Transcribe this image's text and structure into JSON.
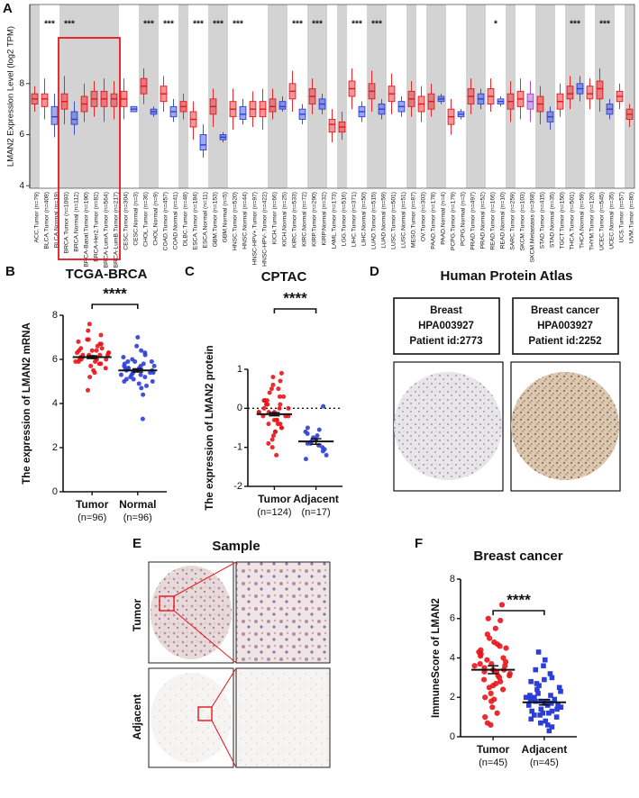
{
  "chart_data": [
    {
      "type": "box",
      "panel_label": "A",
      "y_label": "LMAN2 Expression Level (log2 TPM)",
      "ylim": [
        3.9,
        11.1
      ],
      "yticks": [
        4,
        6,
        8
      ],
      "colors": {
        "Tumor": "#e8141a",
        "Normal": "#2b3fd6",
        "Metastasis": "#9b3fd1"
      },
      "categories": [
        "ACC.Tumor (n=79)",
        "BLCA.Tumor (n=408)",
        "BLCA.Normal (n=19)",
        "BRCA.Tumor (n=1093)",
        "BRCA.Normal (n=112)",
        "BRCA-Basal.Tumor (n=190)",
        "BRCA-Her2.Tumor (n=82)",
        "BRCA-LumA.Tumor (n=564)",
        "BRCA-LumB.Tumor (n=217)",
        "CESC.Tumor (n=304)",
        "CESC.Normal (n=3)",
        "CHOL.Tumor (n=36)",
        "CHOL.Normal (n=9)",
        "COAD.Tumor (n=457)",
        "COAD.Normal (n=41)",
        "DLBC.Tumor (n=48)",
        "ESCA.Tumor (n=184)",
        "ESCA.Normal (n=11)",
        "GBM.Tumor (n=153)",
        "GBM.Normal (n=5)",
        "HNSC.Tumor (n=520)",
        "HNSC.Normal (n=44)",
        "HNSC-HPV+.Tumor (n=97)",
        "HNSC-HPV-.Tumor (n=422)",
        "KICH.Tumor (n=66)",
        "KICH.Normal (n=25)",
        "KIRC.Tumor (n=533)",
        "KIRC.Normal (n=72)",
        "KIRP.Tumor (n=290)",
        "KIRP.Normal (n=32)",
        "LAML.Tumor (n=173)",
        "LGG.Tumor (n=516)",
        "LIHC.Tumor (n=371)",
        "LIHC.Normal (n=50)",
        "LUAD.Tumor (n=515)",
        "LUAD.Normal (n=59)",
        "LUSC.Tumor (n=501)",
        "LUSC.Normal (n=51)",
        "MESO.Tumor (n=87)",
        "OV.Tumor (n=303)",
        "PAAD.Tumor (n=178)",
        "PAAD.Normal (n=4)",
        "PCPG.Tumor (n=179)",
        "PCPG.Normal (n=3)",
        "PRAD.Tumor (n=497)",
        "PRAD.Normal (n=52)",
        "READ.Tumor (n=166)",
        "READ.Normal (n=10)",
        "SARC.Tumor (n=259)",
        "SKCM.Tumor (n=103)",
        "SKCM.Metastasis (n=368)",
        "STAD.Tumor (n=415)",
        "STAD.Normal (n=35)",
        "TGCT.Tumor (n=150)",
        "THCA.Tumor (n=501)",
        "THCA.Normal (n=59)",
        "THYM.Tumor (n=120)",
        "UCEC.Tumor (n=545)",
        "UCEC.Normal (n=35)",
        "UCS.Tumor (n=57)",
        "UVM.Tumor (n=80)"
      ],
      "median": [
        7.4,
        7.4,
        6.7,
        7.3,
        6.6,
        7.2,
        7.4,
        7.4,
        7.4,
        7.4,
        7.0,
        7.9,
        6.9,
        7.6,
        6.9,
        7.1,
        6.6,
        5.6,
        7.1,
        5.9,
        7.0,
        6.8,
        7.0,
        7.0,
        7.1,
        7.1,
        7.7,
        6.8,
        7.5,
        7.2,
        6.4,
        6.3,
        7.8,
        6.9,
        7.7,
        7.0,
        7.6,
        7.1,
        7.4,
        7.2,
        7.3,
        7.4,
        6.7,
        6.8,
        7.5,
        7.4,
        7.5,
        7.3,
        7.3,
        7.4,
        7.3,
        7.2,
        6.7,
        7.3,
        7.6,
        7.8,
        7.6,
        7.8,
        7.0,
        7.5,
        6.8
      ],
      "q1": [
        7.2,
        7.1,
        6.4,
        7.0,
        6.4,
        6.9,
        7.1,
        7.1,
        7.1,
        7.1,
        6.9,
        7.6,
        6.8,
        7.3,
        6.7,
        6.9,
        6.3,
        5.4,
        6.8,
        5.8,
        6.7,
        6.6,
        6.7,
        6.7,
        6.9,
        7.0,
        7.4,
        6.6,
        7.2,
        7.0,
        6.1,
        6.1,
        7.5,
        6.7,
        7.4,
        6.8,
        7.3,
        6.9,
        7.1,
        6.9,
        7.0,
        7.3,
        6.4,
        6.7,
        7.2,
        7.2,
        7.2,
        7.2,
        7.0,
        7.1,
        7.0,
        6.9,
        6.5,
        7.0,
        7.4,
        7.6,
        7.4,
        7.4,
        6.8,
        7.3,
        6.6
      ],
      "q3": [
        7.6,
        7.6,
        7.1,
        7.6,
        6.9,
        7.5,
        7.7,
        7.7,
        7.6,
        7.7,
        7.1,
        8.2,
        7.0,
        7.9,
        7.1,
        7.3,
        6.9,
        6.0,
        7.4,
        6.0,
        7.3,
        7.1,
        7.3,
        7.3,
        7.4,
        7.3,
        8.0,
        7.0,
        7.8,
        7.4,
        6.6,
        6.5,
        8.1,
        7.1,
        8.0,
        7.2,
        7.9,
        7.3,
        7.7,
        7.5,
        7.6,
        7.5,
        7.0,
        6.9,
        7.8,
        7.6,
        7.8,
        7.4,
        7.6,
        7.7,
        7.6,
        7.5,
        6.9,
        7.6,
        7.9,
        8.0,
        7.9,
        8.1,
        7.2,
        7.7,
        7.0
      ],
      "whisker_low": [
        6.9,
        6.6,
        5.9,
        6.4,
        6.0,
        6.5,
        6.7,
        6.5,
        6.6,
        6.6,
        6.9,
        7.2,
        6.7,
        6.9,
        6.5,
        6.6,
        5.8,
        5.1,
        6.3,
        5.7,
        6.2,
        6.4,
        6.3,
        6.2,
        6.6,
        6.9,
        6.9,
        6.4,
        6.8,
        6.8,
        5.7,
        5.8,
        7.0,
        6.5,
        6.9,
        6.6,
        6.8,
        6.7,
        6.7,
        6.5,
        6.7,
        7.2,
        6.0,
        6.6,
        6.8,
        7.0,
        6.9,
        7.1,
        6.5,
        6.6,
        6.5,
        6.4,
        6.2,
        6.7,
        7.0,
        7.3,
        7.0,
        6.9,
        6.6,
        7.0,
        6.3
      ],
      "whisker_high": [
        7.9,
        8.2,
        7.6,
        8.3,
        7.3,
        8.0,
        8.1,
        8.2,
        8.1,
        8.2,
        7.1,
        8.6,
        7.1,
        8.3,
        7.4,
        7.6,
        7.3,
        6.4,
        7.8,
        6.1,
        7.8,
        7.4,
        7.7,
        7.8,
        7.8,
        7.5,
        8.5,
        7.2,
        8.2,
        7.6,
        7.0,
        6.9,
        8.6,
        7.3,
        8.5,
        7.4,
        8.4,
        7.5,
        8.1,
        7.9,
        8.0,
        7.6,
        7.4,
        7.0,
        8.2,
        7.8,
        8.2,
        7.5,
        8.1,
        8.2,
        8.1,
        7.9,
        7.1,
        8.0,
        8.3,
        8.3,
        8.2,
        8.6,
        7.4,
        8.0,
        7.2
      ],
      "significance": [
        null,
        null,
        "***",
        null,
        "***",
        null,
        null,
        null,
        null,
        null,
        null,
        null,
        "***",
        null,
        "***",
        null,
        null,
        "***",
        null,
        "***",
        null,
        "***",
        null,
        null,
        null,
        null,
        null,
        "***",
        null,
        "***",
        null,
        null,
        null,
        "***",
        null,
        "***",
        null,
        null,
        null,
        null,
        null,
        null,
        null,
        null,
        null,
        null,
        null,
        "*",
        null,
        null,
        null,
        null,
        null,
        null,
        null,
        "***",
        null,
        null,
        "***",
        null,
        null
      ]
    },
    {
      "type": "strip",
      "panel_label": "B",
      "title": "TCGA-BRCA",
      "y_label": "The expression of LMAN2 mRNA",
      "ylim": [
        0,
        8
      ],
      "yticks": [
        0,
        2,
        4,
        6,
        8
      ],
      "significance": "****",
      "series": [
        {
          "name": "Tumor",
          "note": "(n=96)",
          "color": "#e8141a",
          "marker": "circle",
          "mean": 6.1,
          "error": 0.06,
          "values": [
            6.1,
            6.4,
            5.8,
            6.9,
            6.2,
            5.5,
            6.0,
            6.7,
            7.6,
            6.3,
            5.9,
            6.1,
            6.5,
            5.2,
            6.8,
            6.0,
            6.2,
            7.1,
            5.7,
            6.3,
            6.6,
            4.6,
            6.0,
            6.4,
            5.9,
            6.2,
            7.3,
            5.6,
            6.1,
            6.5,
            5.8,
            6.9,
            6.3,
            5.4,
            6.0,
            6.7,
            6.2,
            5.9,
            6.4,
            6.1
          ]
        },
        {
          "name": "Normal",
          "note": "(n=96)",
          "color": "#2b3fd6",
          "marker": "circle",
          "mean": 5.5,
          "error": 0.07,
          "values": [
            5.5,
            5.8,
            5.2,
            6.0,
            5.4,
            4.9,
            5.6,
            6.3,
            5.1,
            5.7,
            5.3,
            5.9,
            3.3,
            5.5,
            6.1,
            4.7,
            5.6,
            5.4,
            6.6,
            5.0,
            5.8,
            5.2,
            5.5,
            7.0,
            5.7,
            4.4,
            5.3,
            5.9,
            5.6,
            5.1,
            6.2,
            5.4,
            5.0,
            5.7,
            5.5,
            4.8,
            5.9,
            5.3,
            6.4,
            5.6
          ]
        }
      ]
    },
    {
      "type": "strip",
      "panel_label": "C",
      "title": "CPTAC",
      "y_label": "The expression of LMAN2 protein",
      "ylim": [
        -2,
        1
      ],
      "yticks": [
        -2,
        -1,
        0,
        1
      ],
      "hline": 0,
      "significance": "****",
      "series": [
        {
          "name": "Tumor",
          "note": "(n=124)",
          "color": "#e8141a",
          "marker": "circle",
          "mean": -0.15,
          "error": 0.04,
          "values": [
            -0.1,
            0.2,
            -0.4,
            0.5,
            -0.2,
            -0.6,
            0.0,
            0.3,
            -0.8,
            0.9,
            -0.3,
            0.1,
            -0.5,
            0.6,
            -0.1,
            -1.2,
            0.4,
            -0.2,
            -0.7,
            0.2,
            0.0,
            -0.4,
            0.7,
            -0.3,
            -0.9,
            0.1,
            -0.1,
            0.3,
            -0.6,
            -0.2,
            0.5,
            -1.0,
            0.0,
            -0.3,
            0.2,
            -0.5,
            0.8,
            -0.1,
            -0.4,
            0.1
          ]
        },
        {
          "name": "Adjacent",
          "note": "(n=17)",
          "color": "#2b3fd6",
          "marker": "circle",
          "mean": -0.85,
          "error": 0.07,
          "values": [
            -0.8,
            -0.6,
            -1.0,
            -0.9,
            -1.2,
            -0.7,
            -0.5,
            -1.1,
            -0.85,
            0.05,
            -0.95,
            -0.65,
            -1.05,
            -0.75,
            -1.3,
            -0.55,
            -0.9
          ]
        }
      ]
    },
    {
      "type": "strip",
      "panel_label": "F",
      "title": "Breast cancer",
      "y_label": "ImmuneScore of LMAN2",
      "ylim": [
        0,
        8
      ],
      "yticks": [
        0,
        2,
        4,
        6,
        8
      ],
      "significance": "****",
      "series": [
        {
          "name": "Tumor",
          "note": "(n=45)",
          "color": "#e8141a",
          "marker": "circle",
          "mean": 3.4,
          "error": 0.2,
          "values": [
            3.4,
            4.2,
            2.8,
            5.0,
            3.1,
            1.9,
            3.7,
            4.6,
            2.5,
            6.7,
            3.3,
            0.7,
            4.0,
            2.2,
            3.6,
            5.5,
            2.9,
            3.8,
            1.5,
            4.4,
            3.0,
            3.5,
            5.9,
            2.6,
            4.1,
            1.2,
            3.9,
            3.2,
            4.8,
            2.0,
            3.4,
            0.6,
            4.5,
            2.7,
            5.2,
            3.6,
            1.8,
            4.3,
            3.1,
            6.0,
            2.4,
            3.7,
            1.0,
            4.7,
            3.3
          ]
        },
        {
          "name": "Adjacent",
          "note": "(n=45)",
          "color": "#2b3fd6",
          "marker": "square",
          "mean": 1.75,
          "error": 0.14,
          "values": [
            1.7,
            2.1,
            1.3,
            2.6,
            1.5,
            0.8,
            1.9,
            3.2,
            1.1,
            2.3,
            1.6,
            4.3,
            0.5,
            1.8,
            2.8,
            1.2,
            2.0,
            1.4,
            3.6,
            0.9,
            1.7,
            2.4,
            1.0,
            2.9,
            1.6,
            0.3,
            2.2,
            1.5,
            3.9,
            1.3,
            1.9,
            0.7,
            2.5,
            1.8,
            1.1,
            3.0,
            1.4,
            2.0,
            0.6,
            2.7,
            1.6,
            1.2,
            3.4,
            2.1,
            1.8
          ]
        }
      ]
    }
  ],
  "protein_atlas": {
    "panel_label": "D",
    "title": "Human Protein Atlas",
    "samples": [
      {
        "tissue": "Breast",
        "antibody": "HPA003927",
        "patient": "Patient id:2773"
      },
      {
        "tissue": "Breast cancer",
        "antibody": "HPA003927",
        "patient": "Patient id:2252"
      }
    ]
  },
  "sample_images": {
    "panel_label": "E",
    "title": "Sample",
    "rows": [
      "Tumor",
      "Adjacent"
    ]
  }
}
